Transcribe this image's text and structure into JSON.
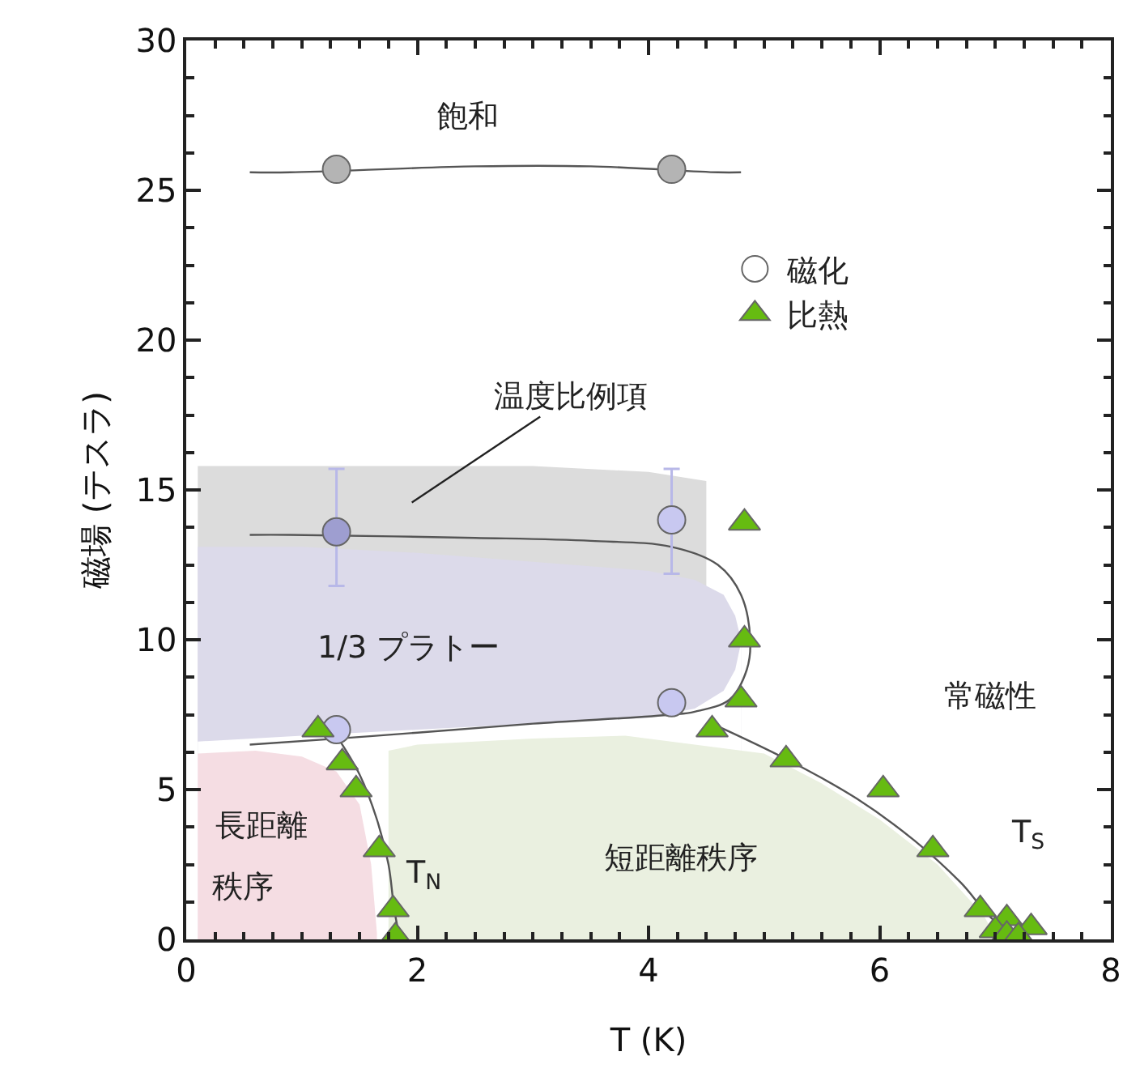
{
  "chart_data": {
    "type": "scatter",
    "xlabel": "T (K)",
    "ylabel": "磁場 (テスラ)",
    "xlim": [
      0,
      8
    ],
    "ylim": [
      0,
      30
    ],
    "xticks": [
      0,
      2,
      4,
      6,
      8
    ],
    "yticks": [
      0,
      5,
      10,
      15,
      20,
      25,
      30
    ],
    "legend": "top right",
    "series": [
      {
        "type": "area",
        "color": "#dcdcdc",
        "x": [
          0.1,
          1.0,
          2.0,
          3.0,
          4.0,
          4.5
        ],
        "values": [
          15.8,
          15.8,
          15.8,
          15.8,
          15.6,
          15.3
        ]
      },
      {
        "type": "area",
        "color": "#dcdaea",
        "x": [
          0.1,
          1.0,
          2.0,
          3.0,
          4.0,
          4.4,
          4.65,
          4.75,
          4.8
        ],
        "values": [
          13.1,
          13.1,
          12.9,
          12.6,
          12.3,
          12.0,
          11.5,
          10.8,
          10.0
        ]
      },
      {
        "type": "area",
        "color": "#ffffff",
        "x": [
          0.1,
          1.0,
          2.0,
          3.0,
          4.0,
          4.4,
          4.65,
          4.75,
          4.8
        ],
        "values": [
          6.6,
          6.8,
          7.0,
          7.2,
          7.4,
          7.7,
          8.3,
          9.0,
          9.9
        ]
      },
      {
        "type": "area",
        "color": "#f5dde3",
        "x": [
          0.1,
          0.6,
          1.0,
          1.3,
          1.5,
          1.6,
          1.65
        ],
        "values": [
          6.2,
          6.3,
          6.1,
          5.6,
          4.5,
          2.5,
          0.2
        ]
      },
      {
        "type": "area",
        "color": "#eaf0e0",
        "x": [
          1.75,
          2.0,
          3.0,
          3.8,
          5.0,
          5.5,
          6.0,
          6.5,
          6.9,
          7.0
        ],
        "values": [
          6.3,
          6.5,
          6.7,
          6.8,
          6.2,
          5.2,
          4.0,
          2.5,
          0.8,
          0.1
        ]
      },
      {
        "type": "line",
        "color": "#555555",
        "x": [
          0.55,
          0.9,
          2.5,
          3.5,
          4.6,
          4.8
        ],
        "values": [
          25.6,
          25.6,
          25.8,
          25.8,
          25.6,
          25.6
        ]
      },
      {
        "type": "line",
        "color": "#555555",
        "x": [
          0.55,
          0.9,
          2.5,
          3.5,
          4.2,
          4.6,
          4.8,
          4.88,
          4.85,
          4.7,
          4.4,
          4.2,
          3.0,
          2.0,
          1.3,
          0.55
        ],
        "values": [
          13.5,
          13.5,
          13.4,
          13.3,
          13.1,
          12.5,
          11.5,
          10.0,
          9.0,
          8.0,
          7.6,
          7.5,
          7.2,
          6.9,
          6.7,
          6.5
        ]
      },
      {
        "type": "line",
        "color": "#555555",
        "x": [
          1.3,
          1.5,
          1.65,
          1.75,
          1.8,
          1.85
        ],
        "values": [
          6.8,
          5.5,
          4.0,
          2.5,
          1.0,
          0.0
        ]
      },
      {
        "type": "line",
        "color": "#555555",
        "x": [
          4.55,
          5.2,
          5.8,
          6.3,
          6.7,
          7.0,
          7.3
        ],
        "values": [
          7.2,
          6.0,
          4.7,
          3.3,
          1.9,
          0.6,
          0.0
        ]
      },
      {
        "name": "磁化",
        "marker": "circle",
        "color": "#ffffff",
        "colors": [
          "#b4b4b4",
          "#b4b4b4",
          "#9e9ed0",
          "#c8c8f0",
          "#c8c8f0",
          "#c8c8f0"
        ],
        "x": [
          1.3,
          4.2,
          1.3,
          4.2,
          1.3,
          4.2
        ],
        "values": [
          25.7,
          25.7,
          13.6,
          14.0,
          7.0,
          7.9
        ],
        "errors": [
          null,
          null,
          [
            11.8,
            15.7
          ],
          [
            12.2,
            15.7
          ],
          null,
          null
        ]
      },
      {
        "name": "比熱",
        "marker": "triangle",
        "color": "#66bb11",
        "x": [
          1.14,
          1.35,
          1.47,
          1.67,
          1.79,
          1.81,
          4.55,
          4.8,
          4.83,
          4.83,
          5.19,
          6.03,
          6.46,
          6.87,
          7.1,
          7.31,
          7.0,
          7.1,
          7.2
        ],
        "values": [
          7.0,
          5.9,
          5.0,
          3.0,
          1.0,
          0.1,
          7.0,
          8.0,
          10.0,
          13.9,
          6.0,
          5.0,
          3.0,
          1.0,
          0.7,
          0.4,
          0.3,
          0.15,
          0.1
        ]
      }
    ],
    "annotations": [
      "飽和",
      "温度比例項",
      "1/3 プラトー",
      "常磁性",
      "長距離",
      "秩序",
      "短距離秩序",
      "T$_{N}$",
      "T$_{S}$"
    ]
  }
}
